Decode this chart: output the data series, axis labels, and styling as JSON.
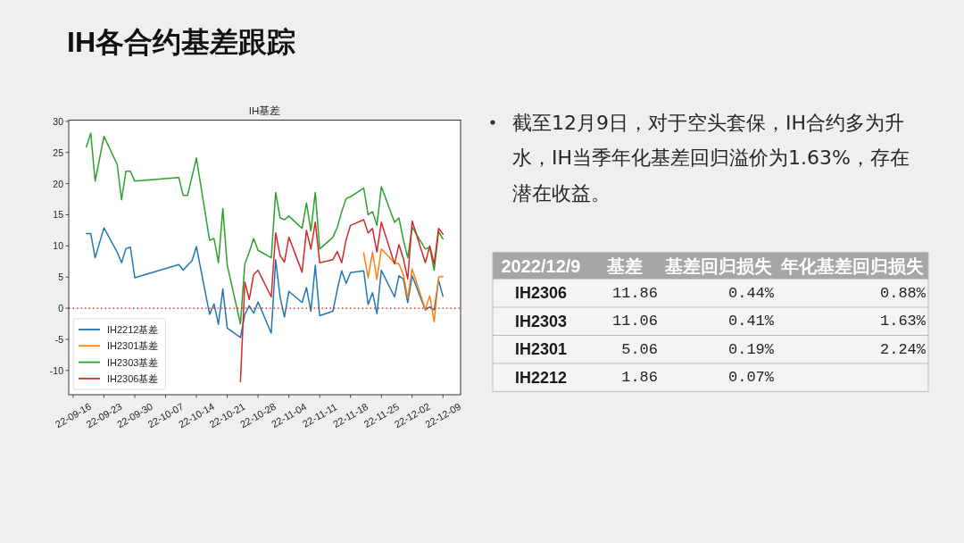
{
  "chart_data": [
    {
      "type": "line",
      "title": "IH基差",
      "x": [
        "2022-09-19",
        "2022-09-20",
        "2022-09-21",
        "2022-09-22",
        "2022-09-23",
        "2022-09-26",
        "2022-09-27",
        "2022-09-28",
        "2022-09-29",
        "2022-09-30",
        "2022-10-10",
        "2022-10-11",
        "2022-10-12",
        "2022-10-13",
        "2022-10-14",
        "2022-10-17",
        "2022-10-18",
        "2022-10-19",
        "2022-10-20",
        "2022-10-21",
        "2022-10-24",
        "2022-10-25",
        "2022-10-26",
        "2022-10-27",
        "2022-10-28",
        "2022-10-31",
        "2022-11-01",
        "2022-11-02",
        "2022-11-03",
        "2022-11-04",
        "2022-11-07",
        "2022-11-08",
        "2022-11-09",
        "2022-11-10",
        "2022-11-11",
        "2022-11-14",
        "2022-11-15",
        "2022-11-16",
        "2022-11-17",
        "2022-11-18",
        "2022-11-21",
        "2022-11-22",
        "2022-11-23",
        "2022-11-24",
        "2022-11-25",
        "2022-11-28",
        "2022-11-29",
        "2022-11-30",
        "2022-12-01",
        "2022-12-02",
        "2022-12-05",
        "2022-12-06",
        "2022-12-07",
        "2022-12-08",
        "2022-12-09"
      ],
      "xlim": [
        "2022-09-15",
        "2022-12-13"
      ],
      "xticks": [
        {
          "value": "2022-09-16",
          "label": "22-09-16"
        },
        {
          "value": "2022-09-23",
          "label": "22-09-23"
        },
        {
          "value": "2022-09-30",
          "label": "22-09-30"
        },
        {
          "value": "2022-10-07",
          "label": "22-10-07"
        },
        {
          "value": "2022-10-14",
          "label": "22-10-14"
        },
        {
          "value": "2022-10-21",
          "label": "22-10-21"
        },
        {
          "value": "2022-10-28",
          "label": "22-10-28"
        },
        {
          "value": "2022-11-04",
          "label": "22-11-04"
        },
        {
          "value": "2022-11-11",
          "label": "22-11-11"
        },
        {
          "value": "2022-11-18",
          "label": "22-11-18"
        },
        {
          "value": "2022-11-25",
          "label": "22-11-25"
        },
        {
          "value": "2022-12-02",
          "label": "22-12-02"
        },
        {
          "value": "2022-12-09",
          "label": "22-12-09"
        }
      ],
      "ylim": [
        -13.9,
        30.2
      ],
      "yticks": [
        -10,
        -5,
        0,
        5,
        10,
        15,
        20,
        25,
        30
      ],
      "legend": "bottom left",
      "ref_lines": [
        {
          "axis": "y",
          "value": 0,
          "color": "#ff0000",
          "line_style": "dotted"
        }
      ],
      "series": [
        {
          "name": "IH2212基差",
          "color": "#1f77b4",
          "values": [
            12.0,
            12.0,
            8.1,
            10.5,
            12.9,
            9.0,
            7.3,
            9.6,
            9.8,
            4.9,
            7.0,
            6.1,
            6.9,
            7.6,
            9.9,
            -1.0,
            0.7,
            -2.6,
            3.1,
            -3.2,
            -4.7,
            -1.0,
            0.4,
            -0.8,
            1.0,
            -4.0,
            7.8,
            1.8,
            -1.4,
            2.7,
            0.9,
            3.3,
            -0.5,
            6.9,
            -1.2,
            -0.5,
            3.0,
            6.0,
            4.0,
            5.7,
            6.0,
            0.6,
            2.5,
            -0.9,
            6.1,
            1.8,
            5.2,
            4.7,
            0.9,
            5.2,
            -0.3,
            0.2,
            -0.3,
            4.5,
            1.9
          ]
        },
        {
          "name": "IH2301基差",
          "color": "#ff7f0e",
          "x": [
            "2022-11-21",
            "2022-11-22",
            "2022-11-23",
            "2022-11-24",
            "2022-11-25",
            "2022-11-28",
            "2022-11-29",
            "2022-11-30",
            "2022-12-01",
            "2022-12-02",
            "2022-12-05",
            "2022-12-06",
            "2022-12-07",
            "2022-12-08",
            "2022-12-09"
          ],
          "values": [
            8.9,
            4.9,
            9.0,
            4.6,
            9.5,
            7.3,
            7.1,
            5.4,
            1.6,
            6.3,
            -0.2,
            2.0,
            -2.2,
            5.0,
            5.1
          ]
        },
        {
          "name": "IH2303基差",
          "color": "#2ca02c",
          "values": [
            25.9,
            28.1,
            20.4,
            24.0,
            27.6,
            23.1,
            17.4,
            22.0,
            22.0,
            20.4,
            21.0,
            18.1,
            18.1,
            21.1,
            24.1,
            10.9,
            11.2,
            7.3,
            16.0,
            6.9,
            -2.5,
            7.1,
            9.0,
            11.2,
            9.3,
            8.1,
            18.6,
            14.5,
            14.2,
            14.8,
            12.8,
            16.9,
            12.4,
            18.6,
            9.5,
            11.4,
            13.0,
            15.5,
            17.6,
            17.9,
            19.3,
            15.0,
            15.5,
            13.3,
            19.5,
            13.8,
            14.5,
            11.0,
            8.1,
            13.0,
            9.5,
            9.8,
            6.1,
            12.3,
            11.1
          ]
        },
        {
          "name": "IH2306基差",
          "color": "#d62728",
          "x": [
            "2022-10-24",
            "2022-10-25",
            "2022-10-26",
            "2022-10-27",
            "2022-10-28",
            "2022-10-31",
            "2022-11-01",
            "2022-11-02",
            "2022-11-03",
            "2022-11-04",
            "2022-11-07",
            "2022-11-08",
            "2022-11-09",
            "2022-11-10",
            "2022-11-11",
            "2022-11-14",
            "2022-11-15",
            "2022-11-16",
            "2022-11-17",
            "2022-11-18",
            "2022-11-21",
            "2022-11-22",
            "2022-11-23",
            "2022-11-24",
            "2022-11-25",
            "2022-11-28",
            "2022-11-29",
            "2022-11-30",
            "2022-12-01",
            "2022-12-02",
            "2022-12-05",
            "2022-12-06",
            "2022-12-07",
            "2022-12-08",
            "2022-12-09"
          ],
          "values": [
            -11.8,
            4.2,
            1.4,
            5.4,
            6.1,
            1.8,
            12.1,
            8.5,
            7.4,
            11.4,
            5.8,
            12.5,
            9.5,
            13.8,
            7.3,
            7.8,
            9.1,
            7.3,
            11.0,
            13.3,
            14.2,
            12.1,
            12.8,
            9.0,
            13.8,
            7.1,
            10.2,
            8.0,
            4.7,
            14.0,
            7.3,
            10.0,
            7.1,
            12.8,
            11.9
          ]
        }
      ]
    },
    {
      "type": "other",
      "title": "IH各合约基差跟踪",
      "annotations": [
        "截至12月9日，对于空头套保，IH合约多为升水，IH当季年化基差回归溢价为1.63%，存在潜在收益。"
      ],
      "ylabel": "2022/12/9",
      "categories": [
        "IH2306",
        "IH2303",
        "IH2301",
        "IH2212"
      ],
      "series": [
        {
          "name": "基差",
          "values": [
            11.86,
            11.06,
            5.06,
            1.86
          ],
          "value_labels": [
            "11.86",
            "11.06",
            "5.06",
            "1.86"
          ]
        },
        {
          "name": "基差回归损失",
          "values": [
            0.44,
            0.41,
            0.19,
            0.07
          ],
          "value_labels": [
            "0.44%",
            "0.41%",
            "0.19%",
            "0.07%"
          ]
        },
        {
          "name": "年化基差回归损失",
          "values": [
            0.88,
            1.63,
            2.24,
            null
          ],
          "value_labels": [
            "0.88%",
            "1.63%",
            "2.24%",
            null
          ]
        }
      ]
    }
  ]
}
